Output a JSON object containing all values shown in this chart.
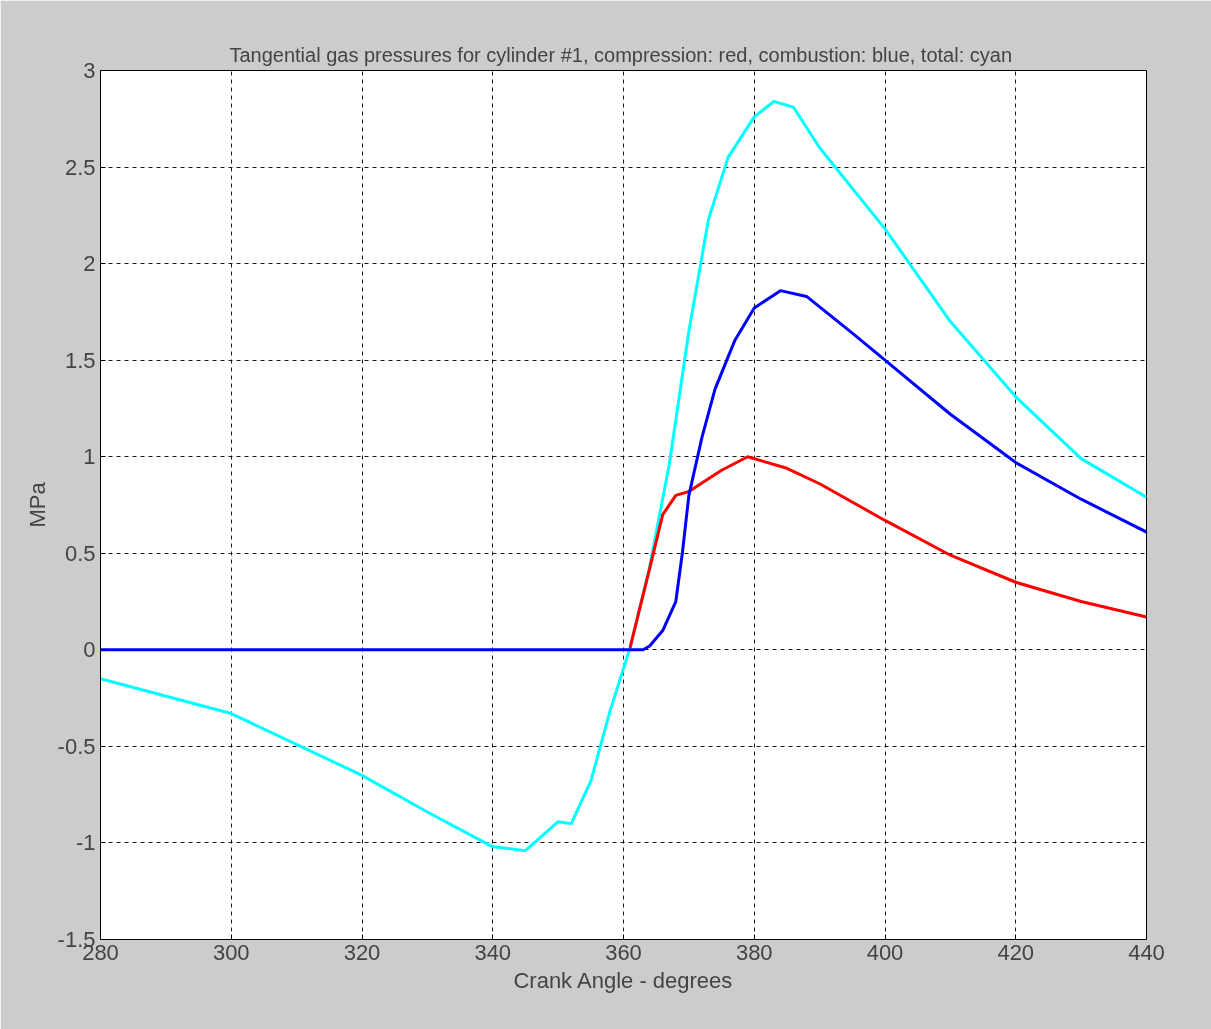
{
  "chart_data": {
    "type": "line",
    "title": "Tangential gas pressures for cylinder #1, compression: red,  combustion: blue, total: cyan",
    "xlabel": "Crank Angle - degrees",
    "ylabel": "MPa",
    "xlim": [
      280,
      440
    ],
    "xticks": [
      280,
      300,
      320,
      340,
      360,
      380,
      400,
      420,
      440
    ],
    "ylim": [
      -1.5,
      3
    ],
    "yticks": [
      -1.5,
      -1,
      -0.5,
      0,
      0.5,
      1,
      1.5,
      2,
      2.5,
      3
    ],
    "grid": true,
    "marker": "none",
    "line_style": "solid",
    "series": [
      {
        "color": "#00ffff",
        "x": [
          280,
          300,
          320,
          330,
          340,
          345,
          350,
          352,
          355,
          358,
          361,
          364,
          367,
          370,
          373,
          376,
          380,
          383,
          386,
          390,
          400,
          410,
          420,
          430,
          440
        ],
        "values": [
          -0.15,
          -0.33,
          -0.65,
          -0.84,
          -1.02,
          -1.04,
          -0.89,
          -0.9,
          -0.68,
          -0.31,
          0.01,
          0.43,
          0.96,
          1.65,
          2.23,
          2.55,
          2.76,
          2.84,
          2.81,
          2.6,
          2.18,
          1.7,
          1.31,
          0.99,
          0.79
        ]
      },
      {
        "color": "#ff0000",
        "x": [
          361,
          364,
          366,
          368,
          370,
          375,
          379,
          385,
          390,
          400,
          410,
          420,
          430,
          440
        ],
        "values": [
          0.01,
          0.42,
          0.7,
          0.8,
          0.82,
          0.93,
          1.0,
          0.94,
          0.86,
          0.67,
          0.49,
          0.35,
          0.25,
          0.17
        ]
      },
      {
        "color": "#0000ff",
        "x": [
          280,
          363,
          364,
          366,
          368,
          369,
          370,
          372,
          374,
          377,
          380,
          384,
          388,
          395,
          400,
          410,
          420,
          430,
          440
        ],
        "values": [
          0,
          0,
          0.02,
          0.1,
          0.25,
          0.5,
          0.8,
          1.1,
          1.35,
          1.6,
          1.77,
          1.86,
          1.83,
          1.64,
          1.5,
          1.22,
          0.97,
          0.78,
          0.61
        ]
      }
    ]
  }
}
